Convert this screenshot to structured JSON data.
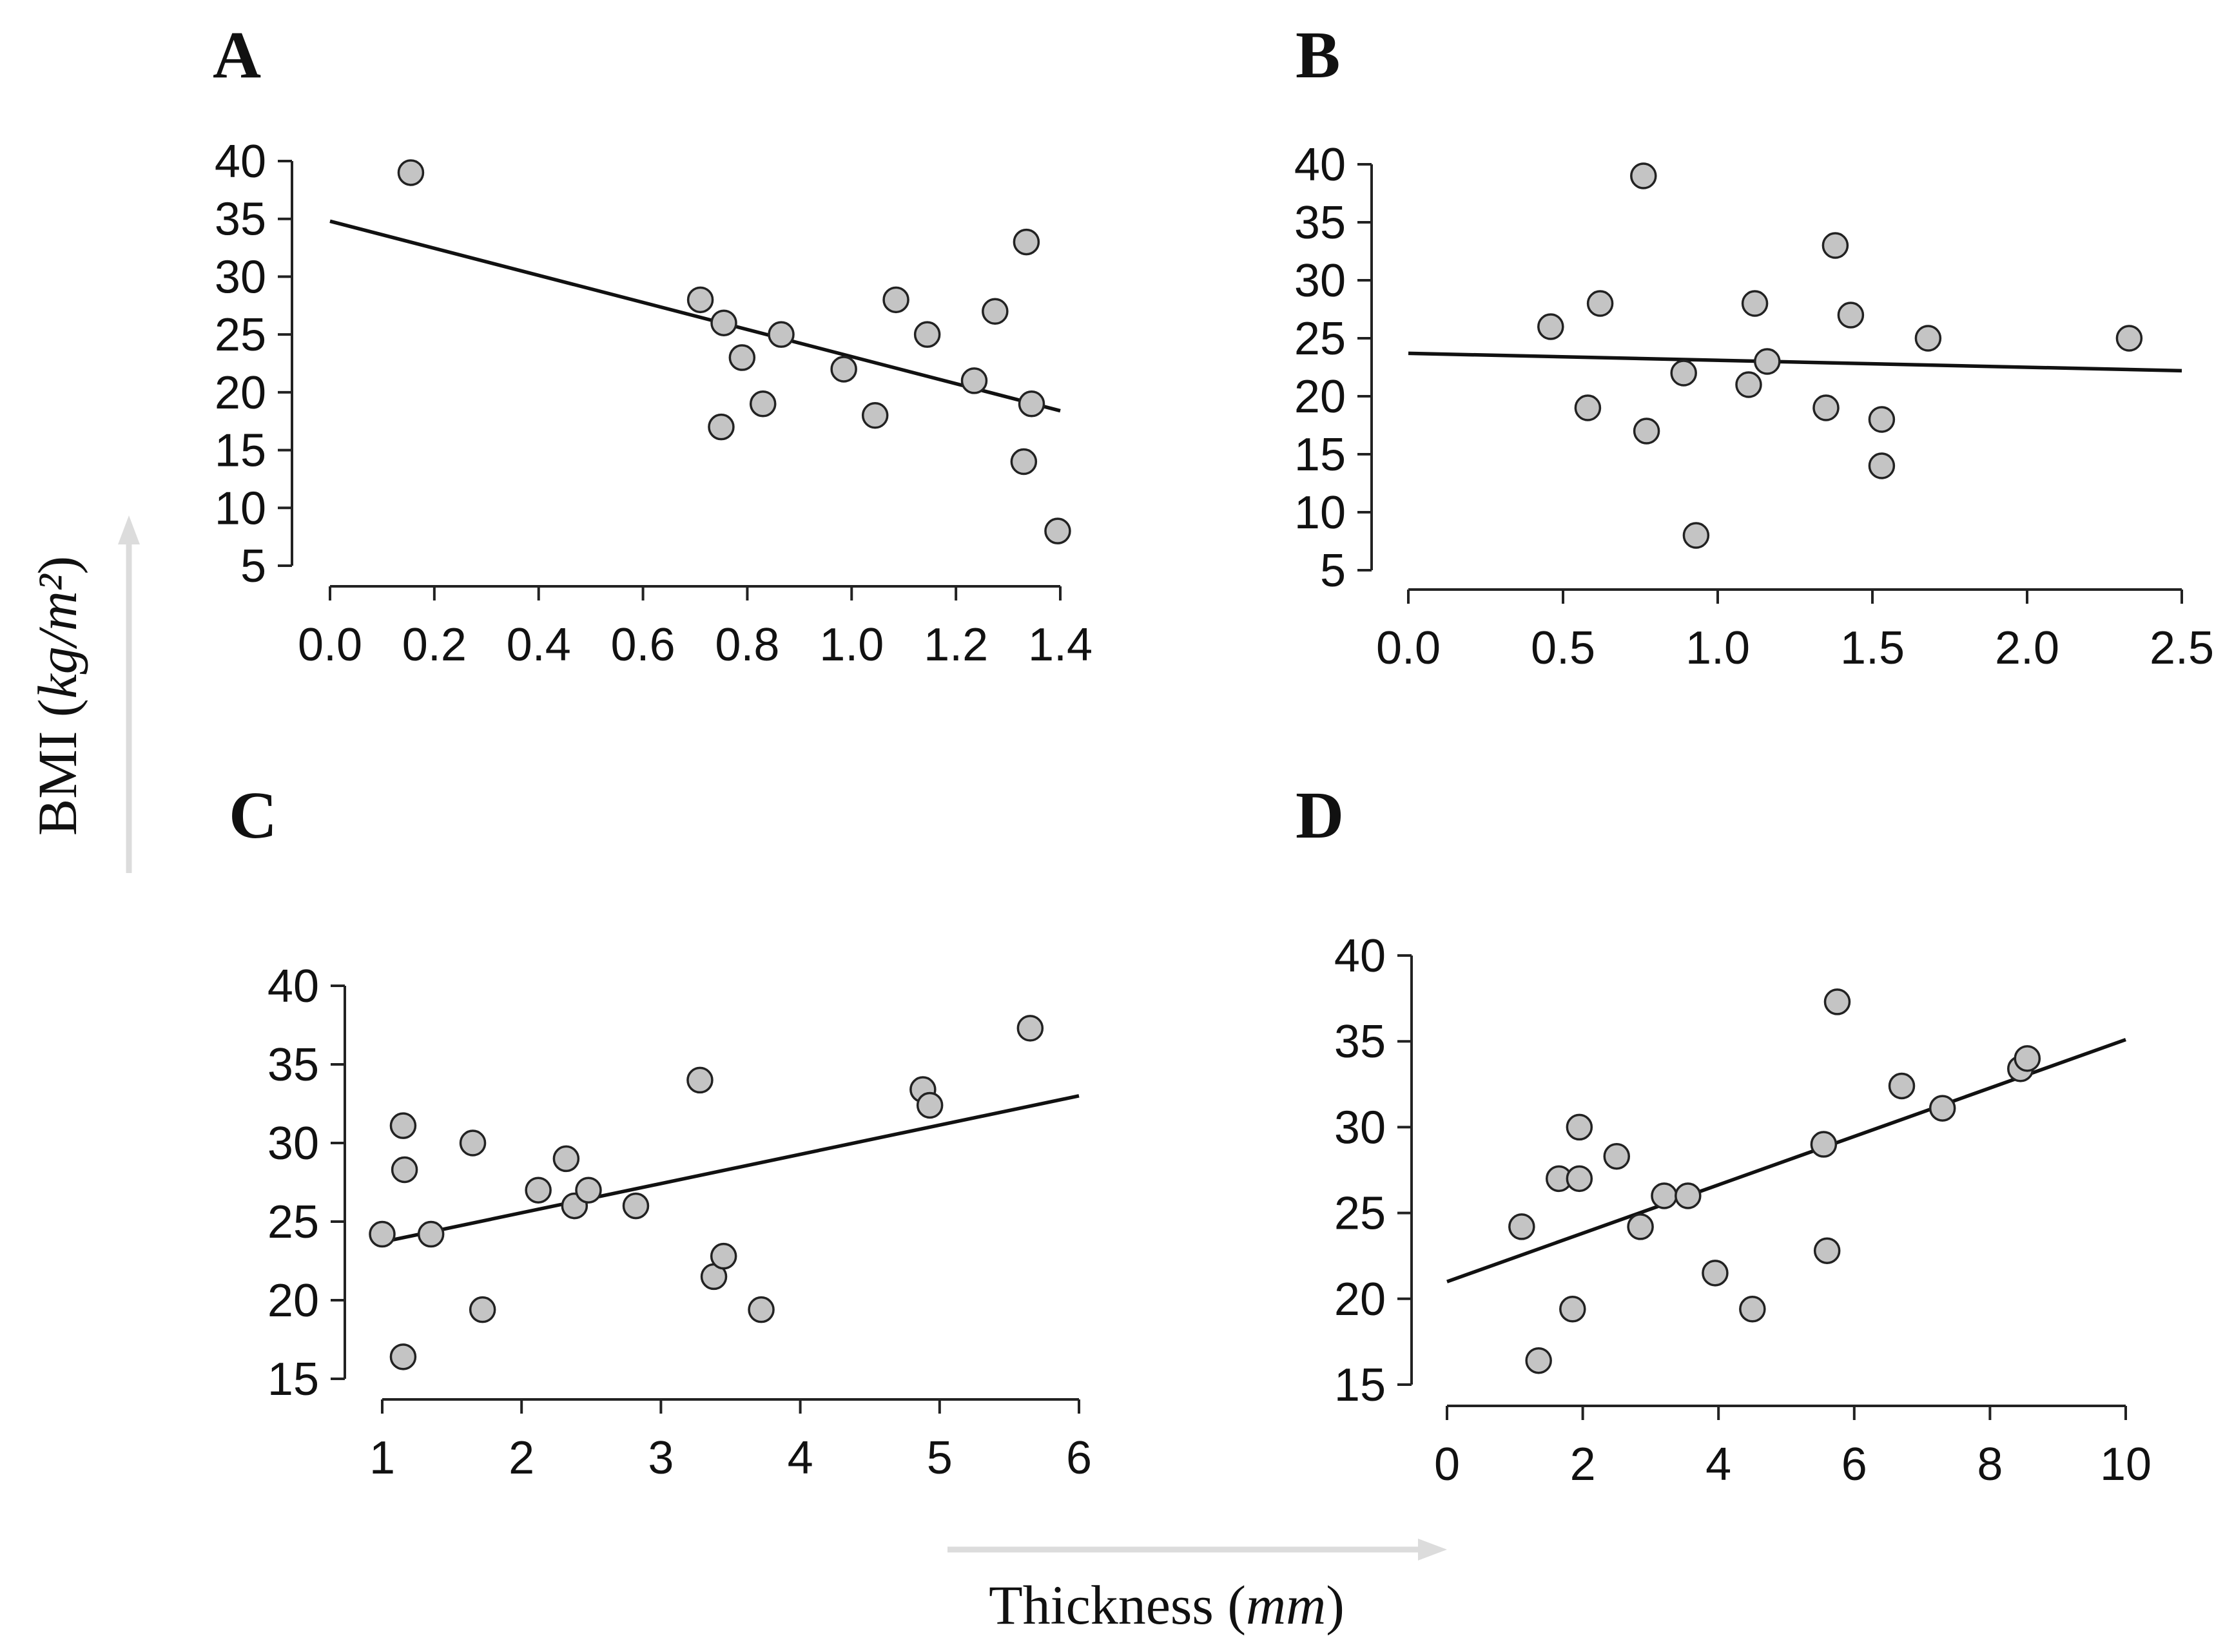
{
  "ylabel": {
    "main": "BMI (",
    "unit": "kg/m²",
    "close": ")"
  },
  "xlabel": {
    "main": "Thickness (",
    "unit": "mm",
    "close": ")"
  },
  "colors": {
    "point_fill": "#c4c4c4",
    "point_stroke": "#222222",
    "line": "#111111",
    "arrow": "#dcdcdc"
  },
  "chart_data": [
    {
      "panel": "A",
      "type": "scatter",
      "xlabel": "",
      "ylabel": "",
      "xlim": [
        0,
        1.4
      ],
      "ylim": [
        5,
        40
      ],
      "xticks": [
        0.0,
        0.2,
        0.4,
        0.6,
        0.8,
        1.0,
        1.2,
        1.4
      ],
      "xtick_labels": [
        "0.0",
        "0.2",
        "0.4",
        "0.6",
        "0.8",
        "1.0",
        "1.2",
        "1.4"
      ],
      "yticks": [
        5,
        10,
        15,
        20,
        25,
        30,
        35,
        40
      ],
      "ytick_labels": [
        "5",
        "10",
        "15",
        "20",
        "25",
        "30",
        "35",
        "40"
      ],
      "points": [
        [
          0.155,
          39
        ],
        [
          0.71,
          28
        ],
        [
          0.755,
          26
        ],
        [
          0.75,
          17
        ],
        [
          0.79,
          23
        ],
        [
          0.83,
          19
        ],
        [
          0.865,
          25
        ],
        [
          0.985,
          22
        ],
        [
          1.045,
          18
        ],
        [
          1.085,
          28
        ],
        [
          1.145,
          25
        ],
        [
          1.235,
          21
        ],
        [
          1.275,
          27
        ],
        [
          1.335,
          33
        ],
        [
          1.33,
          14
        ],
        [
          1.345,
          19
        ],
        [
          1.395,
          8
        ]
      ],
      "fit": [
        [
          0,
          34.8
        ],
        [
          1.4,
          18.4
        ]
      ]
    },
    {
      "panel": "B",
      "type": "scatter",
      "xlabel": "",
      "ylabel": "",
      "xlim": [
        0,
        2.5
      ],
      "ylim": [
        5,
        40
      ],
      "xticks": [
        0.0,
        0.5,
        1.0,
        1.5,
        2.0,
        2.5
      ],
      "xtick_labels": [
        "0.0",
        "0.5",
        "1.0",
        "1.5",
        "2.0",
        "2.5"
      ],
      "yticks": [
        5,
        10,
        15,
        20,
        25,
        30,
        35,
        40
      ],
      "ytick_labels": [
        "5",
        "10",
        "15",
        "20",
        "25",
        "30",
        "35",
        "40"
      ],
      "points": [
        [
          0.46,
          26
        ],
        [
          0.58,
          19
        ],
        [
          0.62,
          28
        ],
        [
          0.76,
          39
        ],
        [
          0.77,
          17
        ],
        [
          0.89,
          22
        ],
        [
          0.93,
          8
        ],
        [
          1.1,
          21
        ],
        [
          1.12,
          28
        ],
        [
          1.16,
          23
        ],
        [
          1.35,
          19
        ],
        [
          1.38,
          33
        ],
        [
          1.43,
          27
        ],
        [
          1.53,
          18
        ],
        [
          1.53,
          14
        ],
        [
          1.68,
          25
        ],
        [
          2.33,
          25
        ]
      ],
      "fit": [
        [
          0,
          23.7
        ],
        [
          2.5,
          22.2
        ]
      ]
    },
    {
      "panel": "C",
      "type": "scatter",
      "xlabel": "",
      "ylabel": "",
      "xlim": [
        1,
        6
      ],
      "ylim": [
        15,
        40
      ],
      "xticks": [
        1,
        2,
        3,
        4,
        5,
        6
      ],
      "xtick_labels": [
        "1",
        "2",
        "3",
        "4",
        "5",
        "6"
      ],
      "yticks": [
        15,
        20,
        25,
        30,
        35,
        40
      ],
      "ytick_labels": [
        "15",
        "20",
        "25",
        "30",
        "35",
        "40"
      ],
      "points": [
        [
          1.0,
          24.2
        ],
        [
          1.15,
          31.1
        ],
        [
          1.16,
          28.3
        ],
        [
          1.15,
          16.4
        ],
        [
          1.35,
          24.2
        ],
        [
          1.65,
          30.0
        ],
        [
          1.72,
          19.4
        ],
        [
          2.12,
          27.0
        ],
        [
          2.32,
          29.0
        ],
        [
          2.38,
          26.0
        ],
        [
          2.48,
          27.0
        ],
        [
          2.82,
          26.0
        ],
        [
          3.28,
          34.0
        ],
        [
          3.38,
          21.5
        ],
        [
          3.45,
          22.8
        ],
        [
          3.72,
          19.4
        ],
        [
          4.88,
          33.4
        ],
        [
          4.93,
          32.4
        ],
        [
          5.65,
          37.3
        ]
      ],
      "fit": [
        [
          1,
          23.7
        ],
        [
          6,
          33.0
        ]
      ]
    },
    {
      "panel": "D",
      "type": "scatter",
      "xlabel": "",
      "ylabel": "",
      "xlim": [
        0,
        10
      ],
      "ylim": [
        15,
        40
      ],
      "xticks": [
        0,
        2,
        4,
        6,
        8,
        10
      ],
      "xtick_labels": [
        "0",
        "2",
        "4",
        "6",
        "8",
        "10"
      ],
      "yticks": [
        15,
        20,
        25,
        30,
        35,
        40
      ],
      "ytick_labels": [
        "15",
        "20",
        "25",
        "30",
        "35",
        "40"
      ],
      "points": [
        [
          1.1,
          24.2
        ],
        [
          1.35,
          16.4
        ],
        [
          1.65,
          27.0
        ],
        [
          1.85,
          19.4
        ],
        [
          1.95,
          30.0
        ],
        [
          1.95,
          27.0
        ],
        [
          2.5,
          28.3
        ],
        [
          2.85,
          24.2
        ],
        [
          3.2,
          26.0
        ],
        [
          3.55,
          26.0
        ],
        [
          3.95,
          21.5
        ],
        [
          4.5,
          19.4
        ],
        [
          5.55,
          29.0
        ],
        [
          5.6,
          22.8
        ],
        [
          5.75,
          37.3
        ],
        [
          6.7,
          32.4
        ],
        [
          7.3,
          31.1
        ],
        [
          8.45,
          33.4
        ],
        [
          8.55,
          34.0
        ]
      ],
      "fit": [
        [
          0,
          21.0
        ],
        [
          10,
          35.1
        ]
      ]
    }
  ]
}
